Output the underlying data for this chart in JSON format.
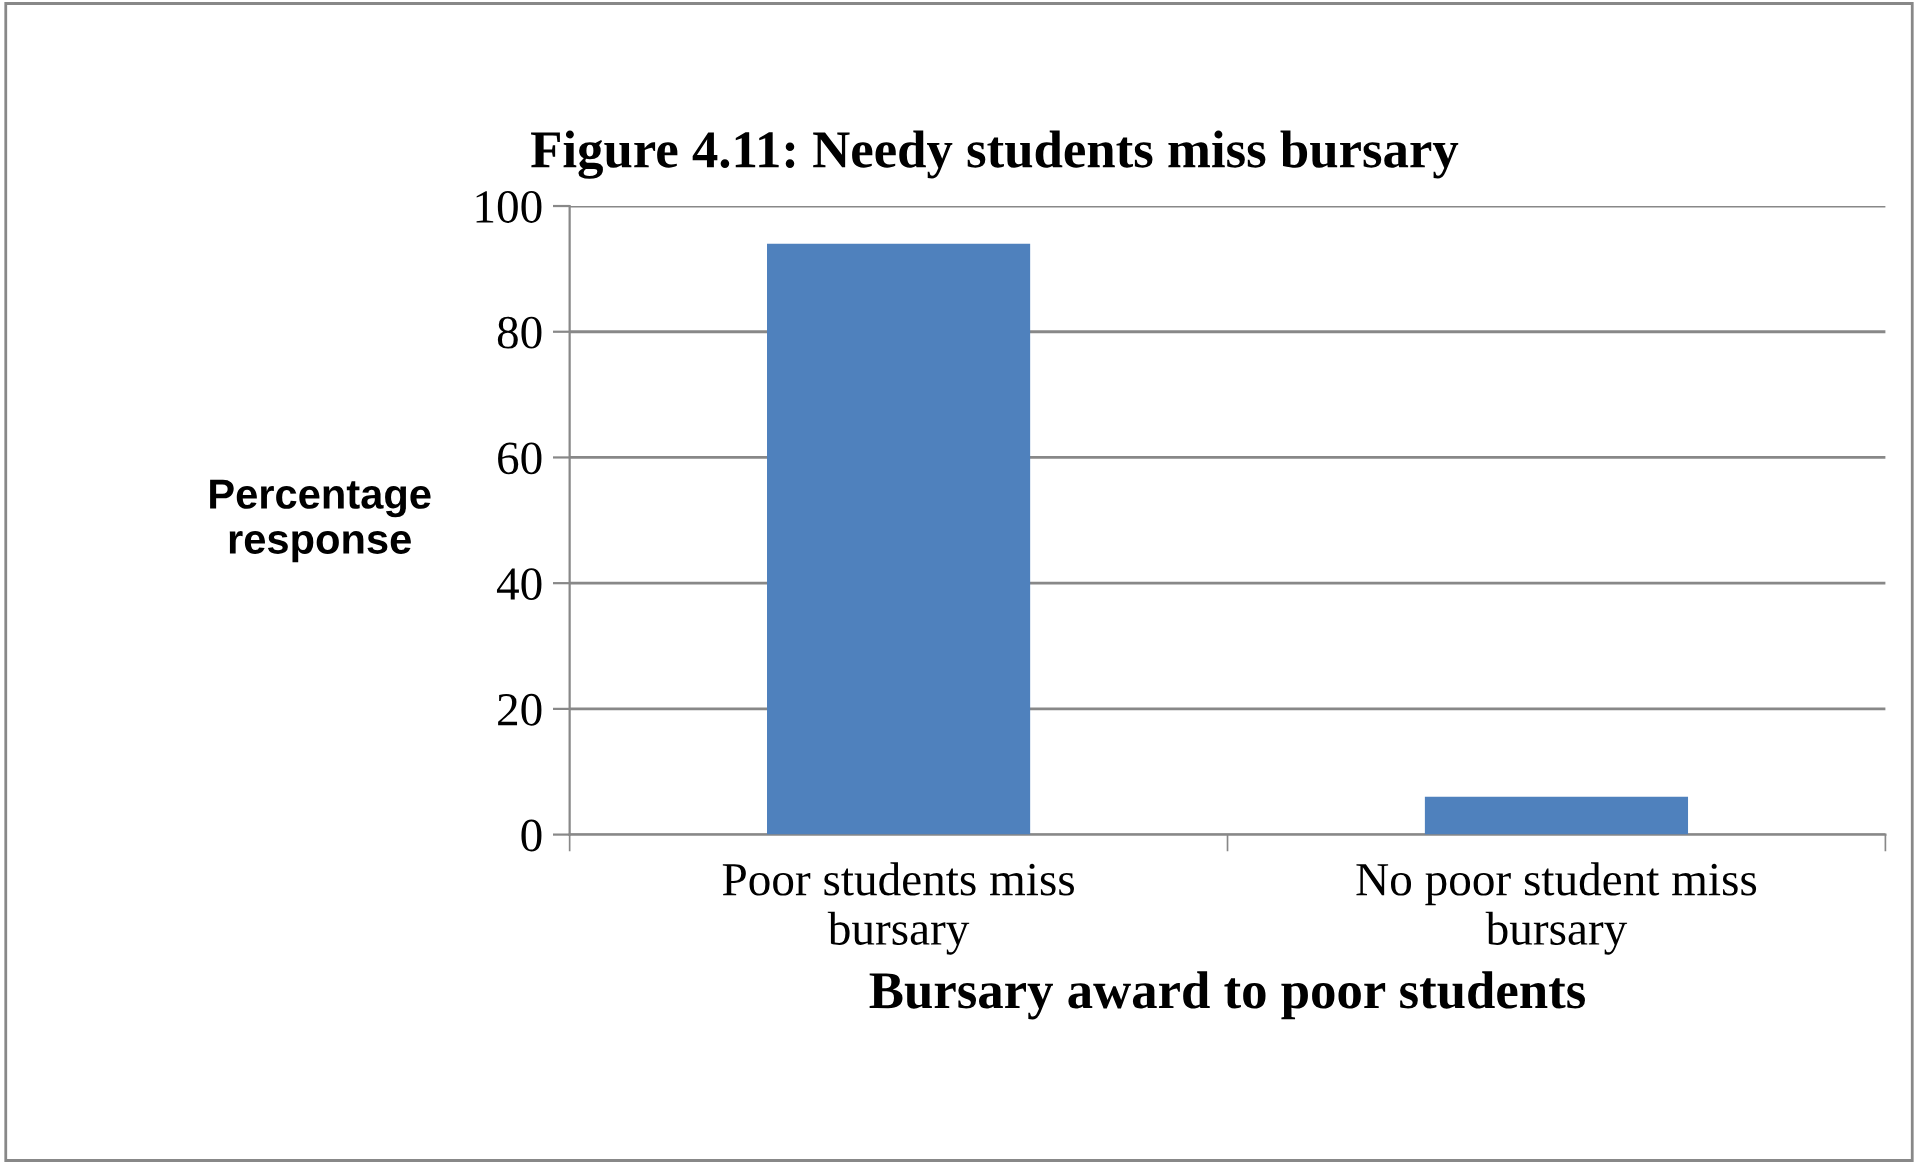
{
  "chart_data": {
    "type": "bar",
    "title": "Figure 4.11: Needy students miss bursary",
    "xlabel": "Bursary award to poor students",
    "ylabel": "Percentage\nresponse",
    "categories": [
      "Poor students miss\nbursary",
      "No poor student miss\nbursary"
    ],
    "values": [
      94,
      6
    ],
    "color": "#4f81bd",
    "ylim": [
      0,
      100
    ],
    "yticks": [
      0,
      20,
      40,
      60,
      80,
      100
    ],
    "grid": "y",
    "legend": false
  }
}
